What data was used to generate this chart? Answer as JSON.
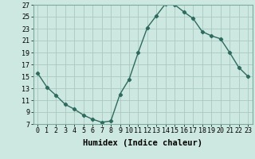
{
  "x": [
    0,
    1,
    2,
    3,
    4,
    5,
    6,
    7,
    8,
    9,
    10,
    11,
    12,
    13,
    14,
    15,
    16,
    17,
    18,
    19,
    20,
    21,
    22,
    23
  ],
  "y": [
    15.5,
    13.2,
    11.8,
    10.3,
    9.5,
    8.5,
    7.8,
    7.3,
    7.5,
    12.0,
    14.5,
    19.0,
    23.2,
    25.2,
    27.2,
    27.0,
    25.8,
    24.7,
    22.5,
    21.8,
    21.3,
    19.0,
    16.5,
    15.0
  ],
  "line_color": "#2e6b5e",
  "bg_color": "#cde8e0",
  "grid_color": "#aac8c0",
  "xlabel": "Humidex (Indice chaleur)",
  "ylim": [
    7,
    27
  ],
  "xlim": [
    -0.5,
    23.5
  ],
  "yticks": [
    7,
    9,
    11,
    13,
    15,
    17,
    19,
    21,
    23,
    25,
    27
  ],
  "xticks": [
    0,
    1,
    2,
    3,
    4,
    5,
    6,
    7,
    8,
    9,
    10,
    11,
    12,
    13,
    14,
    15,
    16,
    17,
    18,
    19,
    20,
    21,
    22,
    23
  ],
  "marker": "D",
  "marker_size": 2.2,
  "line_width": 1.0,
  "xlabel_fontsize": 7.5,
  "tick_fontsize": 6.0,
  "font_family": "monospace"
}
